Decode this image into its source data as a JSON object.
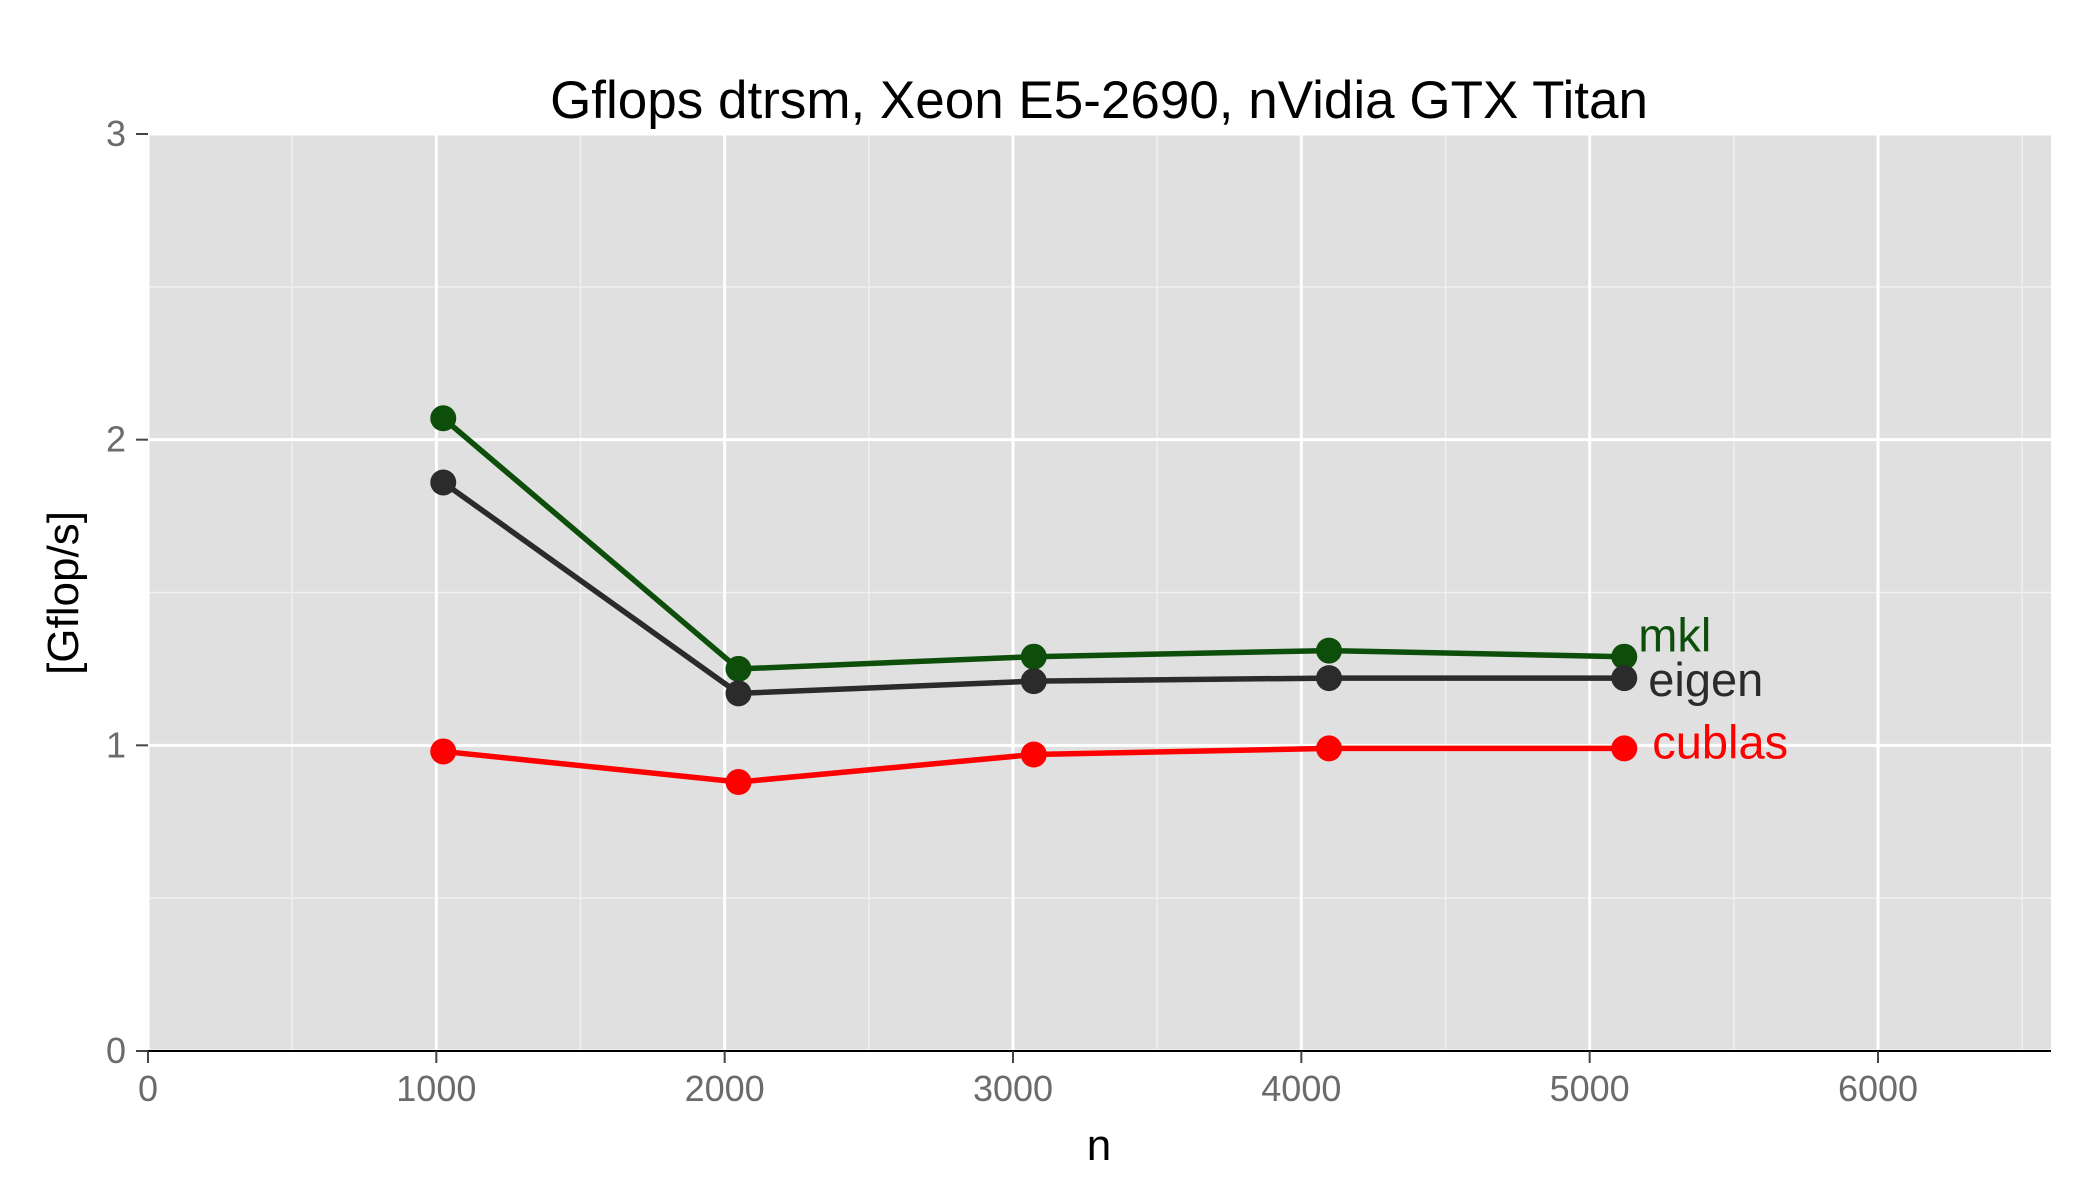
{
  "chart_data": {
    "type": "line",
    "title": "Gflops dtrsm, Xeon E5-2690, nVidia GTX Titan",
    "xlabel": "n",
    "ylabel": "[Gflop/s]",
    "xlim": [
      0,
      6600
    ],
    "ylim": [
      0,
      3
    ],
    "x_ticks": [
      0,
      1000,
      2000,
      3000,
      4000,
      5000,
      6000
    ],
    "y_ticks": [
      0,
      1,
      2,
      3
    ],
    "x_tick_labels": [
      "0",
      "1000",
      "2000",
      "3000",
      "4000",
      "5000",
      "6000"
    ],
    "y_tick_labels": [
      "0",
      "1",
      "2",
      "3"
    ],
    "grid": true,
    "legend": "direct-labels-at-line-end",
    "x": [
      1024,
      2048,
      3072,
      4096,
      5120
    ],
    "series": [
      {
        "name": "mkl",
        "color": "#0d4f0a",
        "values": [
          2.07,
          1.25,
          1.29,
          1.31,
          1.29
        ]
      },
      {
        "name": "eigen",
        "color": "#2b2b2b",
        "values": [
          1.86,
          1.17,
          1.21,
          1.22,
          1.22
        ]
      },
      {
        "name": "cublas",
        "color": "#ff0000",
        "values": [
          0.98,
          0.88,
          0.97,
          0.99,
          0.99
        ]
      }
    ]
  }
}
